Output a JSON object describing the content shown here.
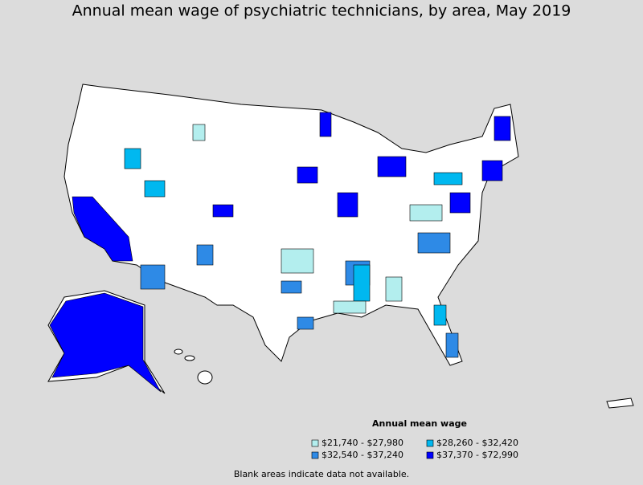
{
  "title": "Annual mean wage of psychiatric technicians, by area, May 2019",
  "legend": {
    "title": "Annual mean wage",
    "entries": [
      {
        "label": "$21,740 - $27,980",
        "color": "#b3eeee"
      },
      {
        "label": "$28,260 - $32,420",
        "color": "#00b8f0"
      },
      {
        "label": "$32,540 - $37,240",
        "color": "#2e8ae6"
      },
      {
        "label": "$37,370 - $72,990",
        "color": "#0000ff"
      }
    ]
  },
  "footnote": "Blank areas indicate data not available."
}
